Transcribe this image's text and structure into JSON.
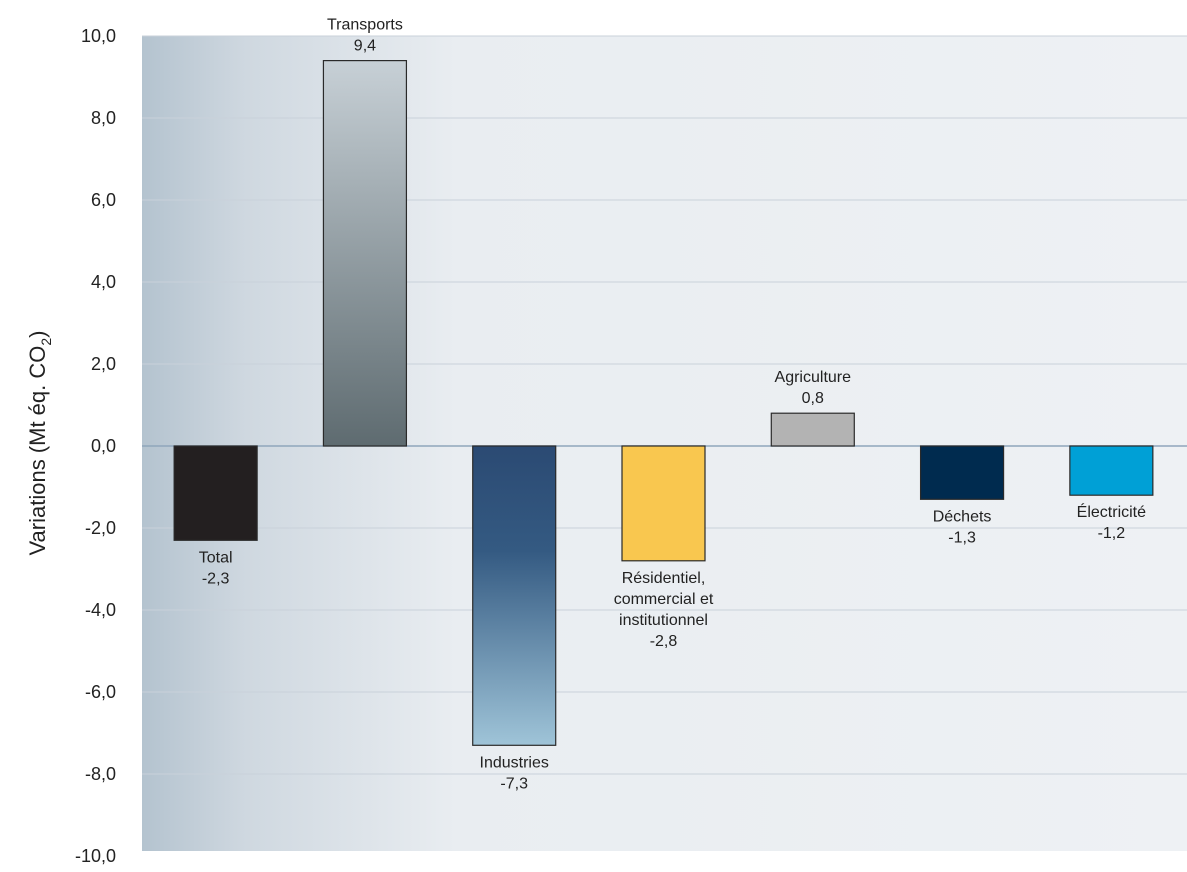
{
  "chart_data": {
    "type": "bar",
    "ylabel_main": "Variations (Mt éq. CO",
    "ylabel_sub": "2",
    "ylabel_end": ")",
    "ylim": [
      -10,
      10
    ],
    "yticks": [
      10,
      8,
      6,
      4,
      2,
      0,
      -2,
      -4,
      -6,
      -8,
      -10
    ],
    "ytick_labels": [
      "10,0",
      "8,0",
      "6,0",
      "4,0",
      "2,0",
      "0,0",
      "-2,0",
      "-4,0",
      "-6,0",
      "-8,0",
      "-10,0"
    ],
    "grid": true,
    "categories": [
      "Total",
      "Transports",
      "Industries",
      "Résidentiel, commercial et institutionnel",
      "Agriculture",
      "Déchets",
      "Électricité"
    ],
    "category_label_lines": [
      [
        "Total"
      ],
      [
        "Transports"
      ],
      [
        "Industries"
      ],
      [
        "Résidentiel,",
        "commercial et",
        "institutionnel"
      ],
      [
        "Agriculture"
      ],
      [
        "Déchets"
      ],
      [
        "Électricité"
      ]
    ],
    "values": [
      -2.3,
      9.4,
      -7.3,
      -2.8,
      0.8,
      -1.3,
      -1.2
    ],
    "value_labels": [
      "-2,3",
      "9,4",
      "-7,3",
      "-2,8",
      "0,8",
      "-1,3",
      "-1,2"
    ],
    "colors": {
      "total": "#231f20",
      "transports": [
        "#c7d0d6",
        "#5e6b70"
      ],
      "industries": [
        "#2b4a73",
        "#9fc4d8"
      ],
      "residentiel": "#f9c74f",
      "agriculture": "#b3b3b3",
      "dechets": "#002b4f",
      "electricite": "#00a0d6",
      "plot_background": "#e9edf1",
      "grid": "#c9d1da"
    }
  }
}
